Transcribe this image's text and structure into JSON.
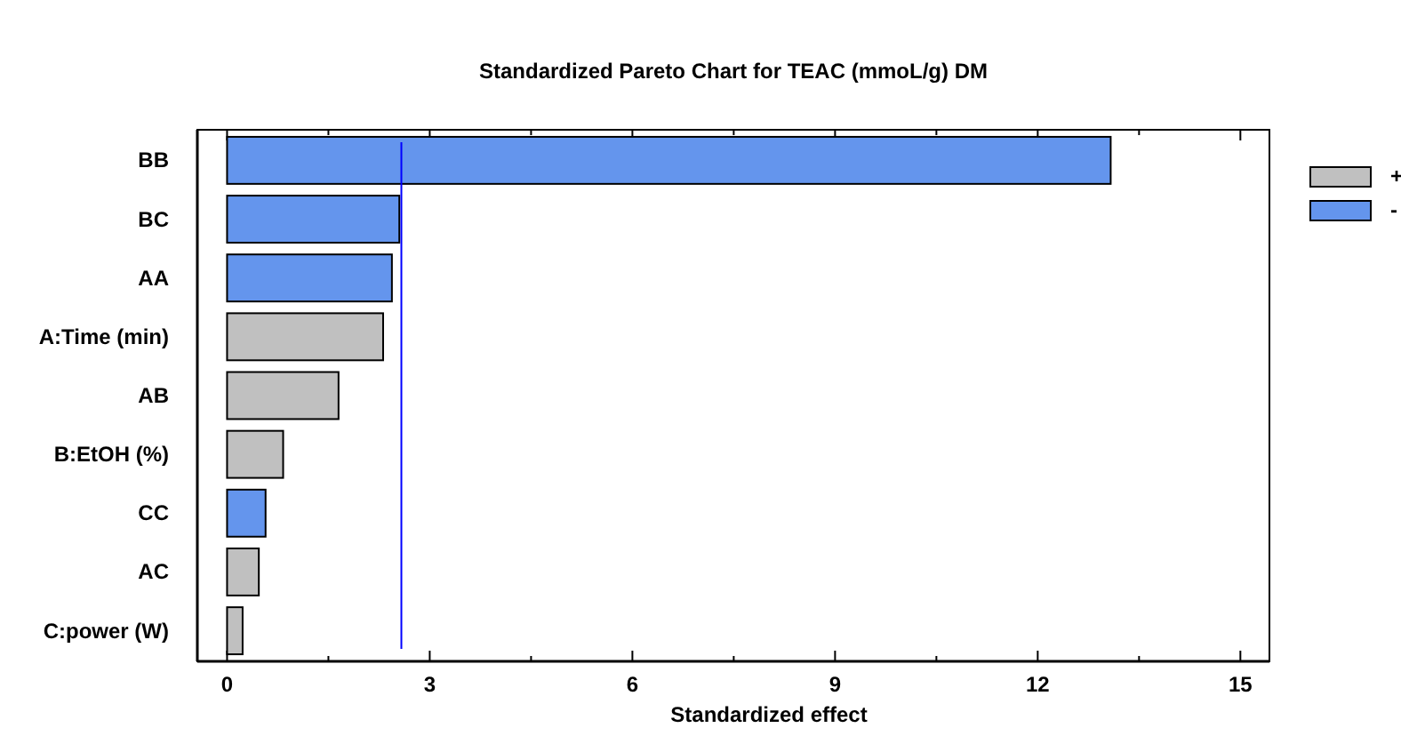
{
  "chart_data": {
    "type": "bar",
    "orientation": "horizontal",
    "stacked": true,
    "title": "Standardized Pareto Chart for TEAC (mmoL/g) DM",
    "xlabel": "Standardized effect",
    "categories": [
      "BB",
      "BC",
      "AA",
      "A:Time (min)",
      "AB",
      "B:EtOH (%)",
      "CC",
      "AC",
      "C:power (W)"
    ],
    "series": [
      {
        "name": "+",
        "color": "#c0c0c0",
        "values": [
          null,
          null,
          null,
          2.31,
          1.65,
          0.83,
          null,
          0.47,
          0.23
        ]
      },
      {
        "name": "-",
        "color": "#6495ed",
        "values": [
          13.08,
          2.55,
          2.44,
          null,
          null,
          null,
          0.57,
          null,
          null
        ]
      }
    ],
    "xlim": [
      -0.44,
      15.43
    ],
    "xticks": [
      0,
      {
        "value": 1.5,
        "label": null
      },
      3,
      {
        "value": 4.5,
        "label": null
      },
      6,
      {
        "value": 7.5,
        "label": null
      },
      9,
      {
        "value": 10.5,
        "label": null
      },
      12,
      {
        "value": 13.5,
        "label": null
      },
      15
    ],
    "ref_lines": [
      {
        "axis": "x",
        "value": 2.58,
        "color": "#0000ff"
      }
    ],
    "legend": "right"
  }
}
